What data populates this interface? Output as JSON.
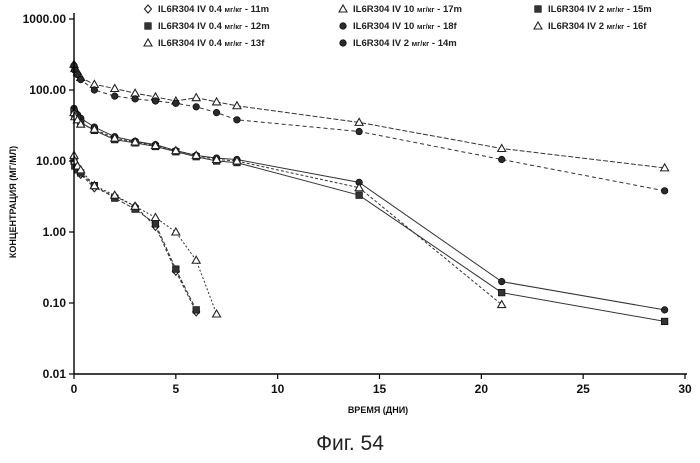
{
  "chart_data": {
    "type": "line",
    "caption": "Фиг. 54",
    "xlabel": "ВРЕМЯ (ДНИ)",
    "ylabel": "КОНЦЕНТРАЦИЯ (МГ/МЛ)",
    "xlim": [
      0,
      30
    ],
    "ylim": [
      0.01,
      1000
    ],
    "yscale": "log",
    "x_ticks": [
      0,
      5,
      10,
      15,
      20,
      25,
      30
    ],
    "y_ticks": [
      0.01,
      0.1,
      1,
      10,
      100,
      1000
    ],
    "y_tick_labels": [
      "0.01",
      "0.10",
      "1.00",
      "10.00",
      "100.00",
      "1000.00"
    ],
    "grid": false,
    "legend_position": "top",
    "series": [
      {
        "name": "IL6R304 IV 0.4",
        "unit": "мг/кг",
        "id": "11m",
        "marker": "diamond",
        "x": [
          0,
          0.04,
          0.17,
          0.33,
          1,
          2,
          3,
          4,
          5,
          6
        ],
        "y": [
          11,
          9,
          8,
          6.5,
          4.2,
          3.2,
          2.3,
          1.2,
          0.28,
          0.075
        ]
      },
      {
        "name": "IL6R304 IV 0.4",
        "unit": "мг/кг",
        "id": "12m",
        "marker": "square",
        "x": [
          0,
          0.04,
          0.17,
          0.33,
          1,
          2,
          3,
          4,
          5,
          6
        ],
        "y": [
          10.5,
          8.5,
          7.5,
          6.8,
          4.5,
          3.0,
          2.1,
          1.3,
          0.3,
          0.08
        ]
      },
      {
        "name": "IL6R304 IV 0.4",
        "unit": "мг/кг",
        "id": "13f",
        "marker": "triangle",
        "x": [
          0,
          0.04,
          0.17,
          0.33,
          1,
          2,
          3,
          4,
          5,
          6,
          7
        ],
        "y": [
          12,
          10,
          8.5,
          7.5,
          4.5,
          3.3,
          2.3,
          1.6,
          1.0,
          0.4,
          0.07
        ]
      },
      {
        "name": "IL6R304 IV 10",
        "unit": "мг/кг",
        "id": "17m",
        "marker": "triangle",
        "x": [
          0,
          0.04,
          0.17,
          0.33,
          1,
          2,
          3,
          4,
          5,
          6,
          7,
          8,
          14,
          21,
          29
        ],
        "y": [
          230,
          200,
          180,
          150,
          120,
          105,
          90,
          80,
          70,
          78,
          68,
          60,
          35,
          15,
          8
        ]
      },
      {
        "name": "IL6R304 IV 10",
        "unit": "мг/кг",
        "id": "18f",
        "marker": "circle",
        "x": [
          0,
          0.04,
          0.17,
          0.33,
          1,
          2,
          3,
          4,
          5,
          6,
          7,
          8,
          14,
          21,
          29
        ],
        "y": [
          220,
          190,
          165,
          140,
          100,
          82,
          75,
          70,
          65,
          58,
          48,
          38,
          26,
          10.5,
          3.8
        ]
      },
      {
        "name": "IL6R304 IV 2",
        "unit": "мг/кг",
        "id": "14m",
        "marker": "circle",
        "x": [
          0,
          0.04,
          0.17,
          0.33,
          1,
          2,
          3,
          4,
          5,
          6,
          7,
          8,
          14,
          21,
          29
        ],
        "y": [
          55,
          50,
          45,
          40,
          30,
          22,
          19,
          17,
          14,
          12,
          11,
          10.5,
          5.0,
          0.2,
          0.08
        ]
      },
      {
        "name": "IL6R304 IV 2",
        "unit": "мг/кг",
        "id": "15m",
        "marker": "square",
        "x": [
          0,
          0.04,
          0.17,
          0.33,
          1,
          2,
          3,
          4,
          5,
          6,
          7,
          8,
          14,
          21,
          29
        ],
        "y": [
          50,
          45,
          40,
          35,
          27,
          20,
          18,
          16,
          13.5,
          11.5,
          10,
          9.5,
          3.3,
          0.14,
          0.055
        ]
      },
      {
        "name": "IL6R304 IV 2",
        "unit": "мг/кг",
        "id": "16f",
        "marker": "triangle",
        "x": [
          0,
          0.04,
          0.17,
          0.33,
          1,
          2,
          3,
          4,
          5,
          6,
          7,
          8,
          14,
          21
        ],
        "y": [
          48,
          42,
          38,
          33,
          28,
          21,
          18.5,
          16.5,
          14,
          12,
          10.5,
          10,
          4.2,
          0.095
        ]
      }
    ]
  }
}
